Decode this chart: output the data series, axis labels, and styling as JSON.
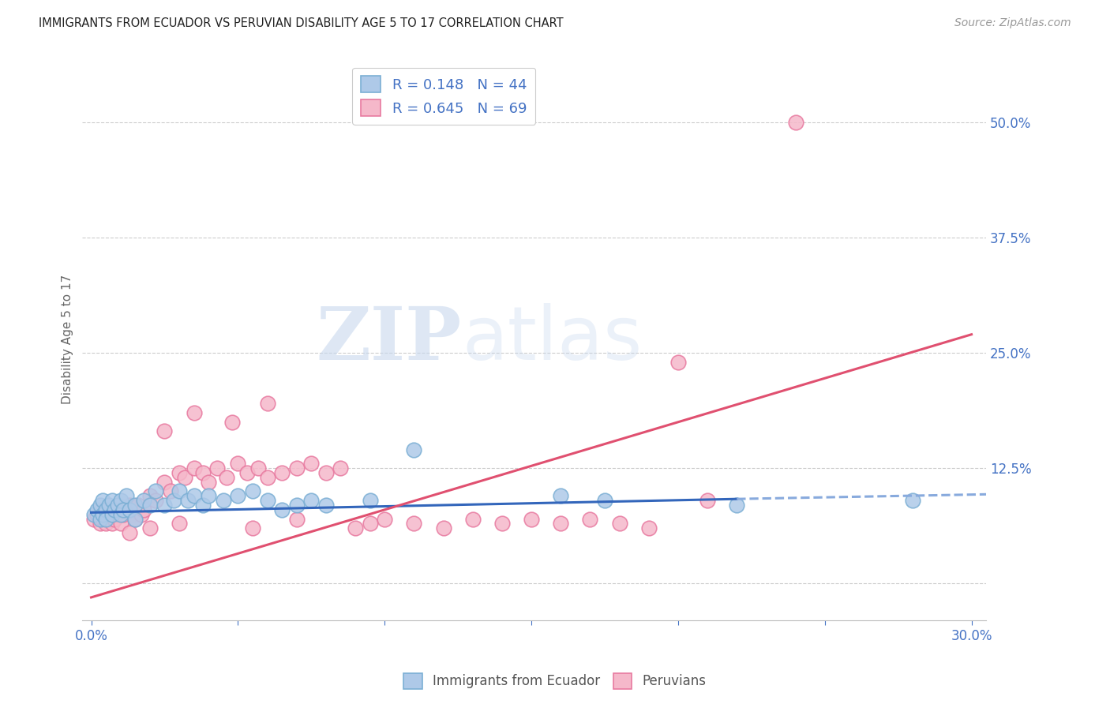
{
  "title": "IMMIGRANTS FROM ECUADOR VS PERUVIAN DISABILITY AGE 5 TO 17 CORRELATION CHART",
  "source": "Source: ZipAtlas.com",
  "ylabel": "Disability Age 5 to 17",
  "xlim": [
    -0.003,
    0.305
  ],
  "ylim": [
    -0.04,
    0.57
  ],
  "yticks": [
    0.0,
    0.125,
    0.25,
    0.375,
    0.5
  ],
  "ytick_labels": [
    "",
    "12.5%",
    "25.0%",
    "37.5%",
    "50.0%"
  ],
  "xticks": [
    0.0,
    0.05,
    0.1,
    0.15,
    0.2,
    0.25,
    0.3
  ],
  "xtick_labels": [
    "0.0%",
    "",
    "",
    "",
    "",
    "",
    "30.0%"
  ],
  "background_color": "#ffffff",
  "grid_color": "#cccccc",
  "ecuador_color": "#7bafd4",
  "ecuador_fill": "#aec9e8",
  "peruvian_color": "#e87aa0",
  "peruvian_fill": "#f5b8ca",
  "trend_ecuador_solid_color": "#3366bb",
  "trend_ecuador_dash_color": "#88aadd",
  "trend_peruvian_color": "#e05070",
  "legend_R_ecuador": "0.148",
  "legend_N_ecuador": "44",
  "legend_R_peruvian": "0.645",
  "legend_N_peruvian": "69",
  "watermark_zip": "ZIP",
  "watermark_atlas": "atlas",
  "ecuador_x": [
    0.001,
    0.002,
    0.003,
    0.003,
    0.004,
    0.004,
    0.005,
    0.005,
    0.006,
    0.007,
    0.007,
    0.008,
    0.009,
    0.01,
    0.01,
    0.011,
    0.012,
    0.013,
    0.015,
    0.015,
    0.018,
    0.02,
    0.022,
    0.025,
    0.028,
    0.03,
    0.033,
    0.035,
    0.038,
    0.04,
    0.045,
    0.05,
    0.055,
    0.06,
    0.065,
    0.07,
    0.075,
    0.08,
    0.095,
    0.11,
    0.16,
    0.175,
    0.22,
    0.28
  ],
  "ecuador_y": [
    0.075,
    0.08,
    0.07,
    0.085,
    0.075,
    0.09,
    0.08,
    0.07,
    0.085,
    0.075,
    0.09,
    0.08,
    0.085,
    0.075,
    0.09,
    0.08,
    0.095,
    0.08,
    0.085,
    0.07,
    0.09,
    0.085,
    0.1,
    0.085,
    0.09,
    0.1,
    0.09,
    0.095,
    0.085,
    0.095,
    0.09,
    0.095,
    0.1,
    0.09,
    0.08,
    0.085,
    0.09,
    0.085,
    0.09,
    0.145,
    0.095,
    0.09,
    0.085,
    0.09
  ],
  "peruvian_x": [
    0.001,
    0.002,
    0.003,
    0.003,
    0.004,
    0.005,
    0.005,
    0.006,
    0.006,
    0.007,
    0.007,
    0.008,
    0.008,
    0.009,
    0.01,
    0.01,
    0.011,
    0.012,
    0.013,
    0.014,
    0.015,
    0.015,
    0.016,
    0.017,
    0.018,
    0.02,
    0.022,
    0.025,
    0.027,
    0.03,
    0.032,
    0.035,
    0.038,
    0.04,
    0.043,
    0.046,
    0.05,
    0.053,
    0.057,
    0.06,
    0.065,
    0.07,
    0.075,
    0.08,
    0.085,
    0.09,
    0.095,
    0.1,
    0.11,
    0.12,
    0.13,
    0.14,
    0.15,
    0.16,
    0.17,
    0.18,
    0.19,
    0.2,
    0.21,
    0.24,
    0.025,
    0.035,
    0.048,
    0.06,
    0.013,
    0.02,
    0.03,
    0.055,
    0.07
  ],
  "peruvian_y": [
    0.07,
    0.075,
    0.065,
    0.08,
    0.07,
    0.075,
    0.065,
    0.08,
    0.07,
    0.075,
    0.065,
    0.08,
    0.07,
    0.075,
    0.065,
    0.08,
    0.075,
    0.08,
    0.085,
    0.075,
    0.08,
    0.07,
    0.085,
    0.075,
    0.08,
    0.095,
    0.09,
    0.11,
    0.1,
    0.12,
    0.115,
    0.125,
    0.12,
    0.11,
    0.125,
    0.115,
    0.13,
    0.12,
    0.125,
    0.115,
    0.12,
    0.125,
    0.13,
    0.12,
    0.125,
    0.06,
    0.065,
    0.07,
    0.065,
    0.06,
    0.07,
    0.065,
    0.07,
    0.065,
    0.07,
    0.065,
    0.06,
    0.24,
    0.09,
    0.5,
    0.165,
    0.185,
    0.175,
    0.195,
    0.055,
    0.06,
    0.065,
    0.06,
    0.07
  ],
  "trend_ecu_x0": 0.0,
  "trend_ecu_y0": 0.077,
  "trend_ecu_x1": 0.3,
  "trend_ecu_y1": 0.097,
  "trend_ecu_dash_x0": 0.22,
  "trend_ecu_dash_x1": 0.305,
  "trend_peru_x0": 0.0,
  "trend_peru_y0": -0.015,
  "trend_peru_x1": 0.3,
  "trend_peru_y1": 0.27
}
